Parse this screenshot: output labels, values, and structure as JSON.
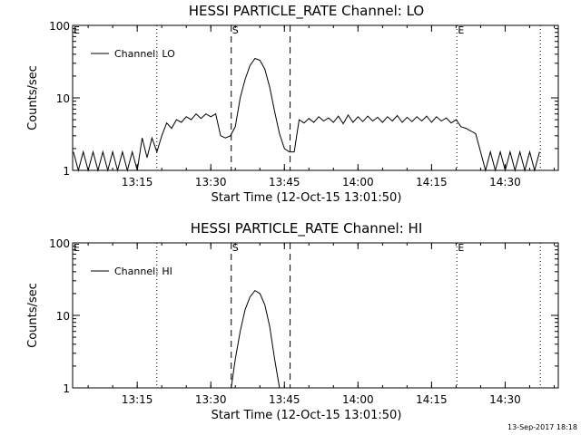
{
  "footer": {
    "stamp": "13-Sep-2017 18:18"
  },
  "chart_data": [
    {
      "type": "line",
      "title": "HESSI PARTICLE_RATE Channel: LO",
      "xlabel": "Start Time (12-Oct-15 13:01:50)",
      "ylabel": "Counts/sec",
      "y_scale": "log",
      "ylim": [
        1,
        100
      ],
      "xlim": [
        "13:01:50",
        "14:40:50"
      ],
      "x_ticks": [
        "13:15",
        "13:30",
        "13:45",
        "14:00",
        "14:15",
        "14:30"
      ],
      "y_ticks": [
        "1",
        "10",
        "100"
      ],
      "legend": {
        "position": "top-left",
        "entries": [
          "Channel: LO"
        ]
      },
      "markers": [
        {
          "label": "E",
          "time": "13:01:50",
          "style": "dotted"
        },
        {
          "label": "",
          "time": "13:19:00",
          "style": "dotted"
        },
        {
          "label": "S",
          "time": "13:34:10",
          "style": "dashed"
        },
        {
          "label": "",
          "time": "13:46:10",
          "style": "dashed"
        },
        {
          "label": "E",
          "time": "14:20:10",
          "style": "dotted"
        },
        {
          "label": "",
          "time": "14:37:10",
          "style": "dotted"
        }
      ],
      "series": [
        {
          "name": "Channel: LO",
          "points": [
            [
              "13:02:00",
              1.8
            ],
            [
              "13:03:00",
              1.0
            ],
            [
              "13:04:00",
              1.8
            ],
            [
              "13:05:00",
              1.0
            ],
            [
              "13:06:00",
              1.8
            ],
            [
              "13:07:00",
              1.0
            ],
            [
              "13:08:00",
              1.8
            ],
            [
              "13:09:00",
              1.0
            ],
            [
              "13:10:00",
              1.8
            ],
            [
              "13:11:00",
              1.0
            ],
            [
              "13:12:00",
              1.8
            ],
            [
              "13:13:00",
              1.0
            ],
            [
              "13:14:00",
              1.8
            ],
            [
              "13:15:00",
              1.0
            ],
            [
              "13:16:00",
              2.8
            ],
            [
              "13:17:00",
              1.5
            ],
            [
              "13:18:00",
              2.8
            ],
            [
              "13:19:00",
              1.8
            ],
            [
              "13:20:00",
              3.0
            ],
            [
              "13:21:00",
              4.5
            ],
            [
              "13:22:00",
              3.8
            ],
            [
              "13:23:00",
              5.0
            ],
            [
              "13:24:00",
              4.6
            ],
            [
              "13:25:00",
              5.5
            ],
            [
              "13:26:00",
              5.0
            ],
            [
              "13:27:00",
              6.0
            ],
            [
              "13:28:00",
              5.2
            ],
            [
              "13:29:00",
              6.0
            ],
            [
              "13:30:00",
              5.5
            ],
            [
              "13:31:00",
              6.0
            ],
            [
              "13:32:00",
              3.0
            ],
            [
              "13:33:00",
              2.8
            ],
            [
              "13:34:00",
              3.0
            ],
            [
              "13:35:00",
              4.0
            ],
            [
              "13:36:00",
              10.0
            ],
            [
              "13:37:00",
              18.0
            ],
            [
              "13:38:00",
              28.0
            ],
            [
              "13:39:00",
              35.0
            ],
            [
              "13:40:00",
              33.0
            ],
            [
              "13:41:00",
              25.0
            ],
            [
              "13:42:00",
              14.0
            ],
            [
              "13:43:00",
              6.5
            ],
            [
              "13:44:00",
              3.2
            ],
            [
              "13:45:00",
              2.0
            ],
            [
              "13:46:00",
              1.8
            ],
            [
              "13:47:00",
              1.8
            ],
            [
              "13:48:00",
              5.0
            ],
            [
              "13:49:00",
              4.5
            ],
            [
              "13:50:00",
              5.2
            ],
            [
              "13:51:00",
              4.6
            ],
            [
              "13:52:00",
              5.5
            ],
            [
              "13:53:00",
              4.8
            ],
            [
              "13:54:00",
              5.3
            ],
            [
              "13:55:00",
              4.6
            ],
            [
              "13:56:00",
              5.6
            ],
            [
              "13:57:00",
              4.4
            ],
            [
              "13:58:00",
              5.8
            ],
            [
              "13:59:00",
              4.6
            ],
            [
              "14:00:00",
              5.5
            ],
            [
              "14:01:00",
              4.7
            ],
            [
              "14:02:00",
              5.6
            ],
            [
              "14:03:00",
              4.8
            ],
            [
              "14:04:00",
              5.4
            ],
            [
              "14:05:00",
              4.6
            ],
            [
              "14:06:00",
              5.5
            ],
            [
              "14:07:00",
              4.8
            ],
            [
              "14:08:00",
              5.7
            ],
            [
              "14:09:00",
              4.6
            ],
            [
              "14:10:00",
              5.4
            ],
            [
              "14:11:00",
              4.7
            ],
            [
              "14:12:00",
              5.5
            ],
            [
              "14:13:00",
              4.8
            ],
            [
              "14:14:00",
              5.6
            ],
            [
              "14:15:00",
              4.6
            ],
            [
              "14:16:00",
              5.5
            ],
            [
              "14:17:00",
              4.8
            ],
            [
              "14:18:00",
              5.3
            ],
            [
              "14:19:00",
              4.5
            ],
            [
              "14:20:00",
              5.0
            ],
            [
              "14:21:00",
              4.0
            ],
            [
              "14:22:00",
              3.8
            ],
            [
              "14:23:00",
              3.5
            ],
            [
              "14:24:00",
              3.2
            ],
            [
              "14:25:00",
              1.8
            ],
            [
              "14:26:00",
              1.0
            ],
            [
              "14:27:00",
              1.8
            ],
            [
              "14:28:00",
              1.0
            ],
            [
              "14:29:00",
              1.8
            ],
            [
              "14:30:00",
              1.0
            ],
            [
              "14:31:00",
              1.8
            ],
            [
              "14:32:00",
              1.0
            ],
            [
              "14:33:00",
              1.8
            ],
            [
              "14:34:00",
              1.0
            ],
            [
              "14:35:00",
              1.8
            ],
            [
              "14:36:00",
              1.0
            ],
            [
              "14:37:00",
              1.8
            ]
          ]
        }
      ]
    },
    {
      "type": "line",
      "title": "HESSI PARTICLE_RATE Channel: HI",
      "xlabel": "Start Time (12-Oct-15 13:01:50)",
      "ylabel": "Counts/sec",
      "y_scale": "log",
      "ylim": [
        1,
        100
      ],
      "xlim": [
        "13:01:50",
        "14:40:50"
      ],
      "x_ticks": [
        "13:15",
        "13:30",
        "13:45",
        "14:00",
        "14:15",
        "14:30"
      ],
      "y_ticks": [
        "1",
        "10",
        "100"
      ],
      "legend": {
        "position": "top-left",
        "entries": [
          "Channel: HI"
        ]
      },
      "markers": [
        {
          "label": "E",
          "time": "13:01:50",
          "style": "dotted"
        },
        {
          "label": "",
          "time": "13:19:00",
          "style": "dotted"
        },
        {
          "label": "S",
          "time": "13:34:10",
          "style": "dashed"
        },
        {
          "label": "",
          "time": "13:46:10",
          "style": "dashed"
        },
        {
          "label": "E",
          "time": "14:20:10",
          "style": "dotted"
        },
        {
          "label": "",
          "time": "14:37:10",
          "style": "dotted"
        }
      ],
      "series": [
        {
          "name": "Channel: HI",
          "points": [
            [
              "13:34:10",
              1.0
            ],
            [
              "13:35:00",
              2.5
            ],
            [
              "13:36:00",
              6.0
            ],
            [
              "13:37:00",
              12.0
            ],
            [
              "13:38:00",
              18.0
            ],
            [
              "13:39:00",
              22.0
            ],
            [
              "13:40:00",
              20.0
            ],
            [
              "13:41:00",
              14.0
            ],
            [
              "13:42:00",
              7.0
            ],
            [
              "13:43:00",
              2.5
            ],
            [
              "13:44:00",
              1.0
            ]
          ]
        }
      ]
    }
  ]
}
